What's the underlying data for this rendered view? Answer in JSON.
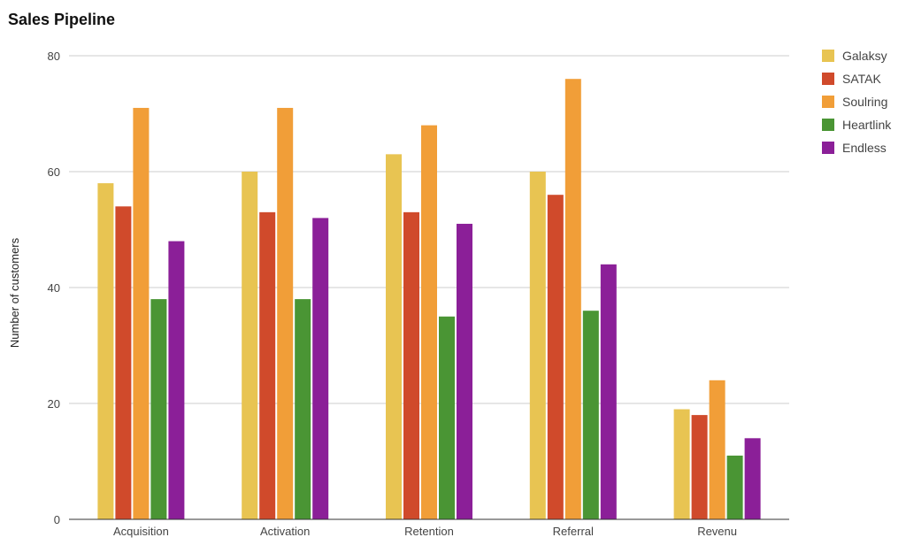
{
  "chart_data": {
    "type": "bar",
    "title": "Sales Pipeline",
    "xlabel": "",
    "ylabel": "Number of customers",
    "ylim": [
      0,
      80
    ],
    "yticks": [
      0,
      20,
      40,
      60,
      80
    ],
    "grid": true,
    "legend_position": "right",
    "categories": [
      "Acquisition",
      "Activation",
      "Retention",
      "Referral",
      "Revenu"
    ],
    "series": [
      {
        "name": "Galaksy",
        "color": "#e8c452",
        "values": [
          58,
          60,
          63,
          60,
          19
        ]
      },
      {
        "name": "SATAK",
        "color": "#d04a2b",
        "values": [
          54,
          53,
          53,
          56,
          18
        ]
      },
      {
        "name": "Soulring",
        "color": "#f19e38",
        "values": [
          71,
          71,
          68,
          76,
          24
        ]
      },
      {
        "name": "Heartlink",
        "color": "#4a9534",
        "values": [
          38,
          38,
          35,
          36,
          11
        ]
      },
      {
        "name": "Endless",
        "color": "#8b1f98",
        "values": [
          48,
          52,
          51,
          44,
          14
        ]
      }
    ]
  }
}
